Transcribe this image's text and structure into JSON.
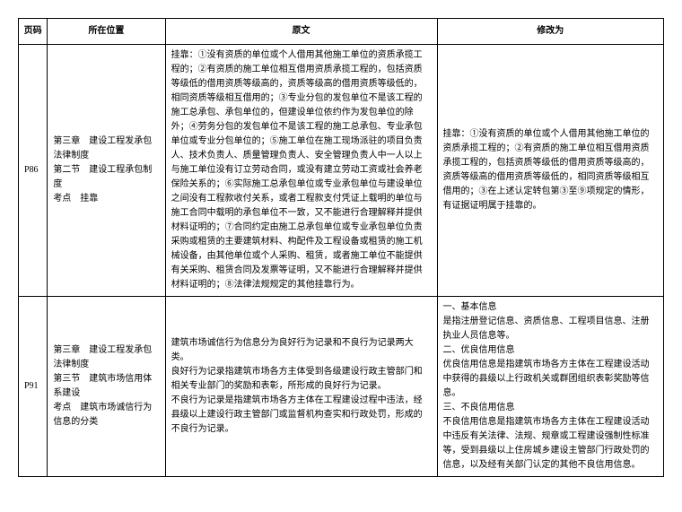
{
  "headers": {
    "page": "页码",
    "location": "所在位置",
    "original": "原文",
    "revised": "修改为"
  },
  "rows": [
    {
      "page": "P86",
      "location": "第三章　建设工程发承包法律制度\n第二节　建设工程承包制度\n考点　挂靠",
      "original": "挂靠：①没有资质的单位或个人借用其他施工单位的资质承揽工程的；②有资质的施工单位相互借用资质承揽工程的，包括资质等级低的借用资质等级高的，资质等级高的借用资质等级低的，相同资质等级相互借用的；③专业分包的发包单位不是该工程的施工总承包、承包单位的，但建设单位依约作为发包单位的除外；④劳务分包的发包单位不是该工程的施工总承包、专业承包单位或专业分包单位的；⑤施工单位在施工现场派驻的项目负责人、技术负责人、质量管理负责人、安全管理负责人中一人以上与施工单位没有订立劳动合同，或没有建立劳动工资或社会养老保险关系的；⑥实际施工总承包单位或专业承包单位与建设单位之间没有工程款收付关系，或者工程款支付凭证上载明的单位与施工合同中载明的承包单位不一致，又不能进行合理解释并提供材料证明的；⑦合同约定由施工总承包单位或专业承包单位负责采购或租赁的主要建筑材料、构配件及工程设备或租赁的施工机械设备，由其他单位或个人采购、租赁，或者施工单位不能提供有关采购、租赁合同及发票等证明，又不能进行合理解释并提供材料证明的；⑧法律法规规定的其他挂靠行为。",
      "revised": "挂靠：①没有资质的单位或个人借用其他施工单位的资质承揽工程的；②有资质的施工单位相互借用资质承揽工程的，包括资质等级低的借用资质等级高的，资质等级高的借用资质等级低的，相同资质等级相互借用的；③在上述认定转包第③至⑨项规定的情形，有证据证明属于挂靠的。"
    },
    {
      "page": "P91",
      "location": "第三章　建设工程发承包法律制度\n第三节　建筑市场信用体系建设\n考点　建筑市场诚信行为信息的分类",
      "original": "建筑市场诚信行为信息分为良好行为记录和不良行为记录两大类。\n良好行为记录指建筑市场各方主体受到各级建设行政主管部门和相关专业部门的奖励和表彰，所形成的良好行为记录。\n不良行为记录是指建筑市场各方主体在工程建设过程中违法，经县级以上建设行政主管部门或监督机构查实和行政处罚，形成的不良行为记录。",
      "revised": "一、基本信息\n是指注册登记信息、资质信息、工程项目信息、注册执业人员信息等。\n二、优良信用信息\n优良信用信息是指建筑市场各方主体在工程建设活动中获得的县级以上行政机关或群团组织表彰奖励等信息。\n三、不良信用信息\n不良信用信息是指建筑市场各方主体在工程建设活动中违反有关法律、法规、规章或工程建设强制性标准等，受到县级以上住房城乡建设主管部门行政处罚的信息，以及经有关部门认定的其他不良信用信息。"
    }
  ]
}
